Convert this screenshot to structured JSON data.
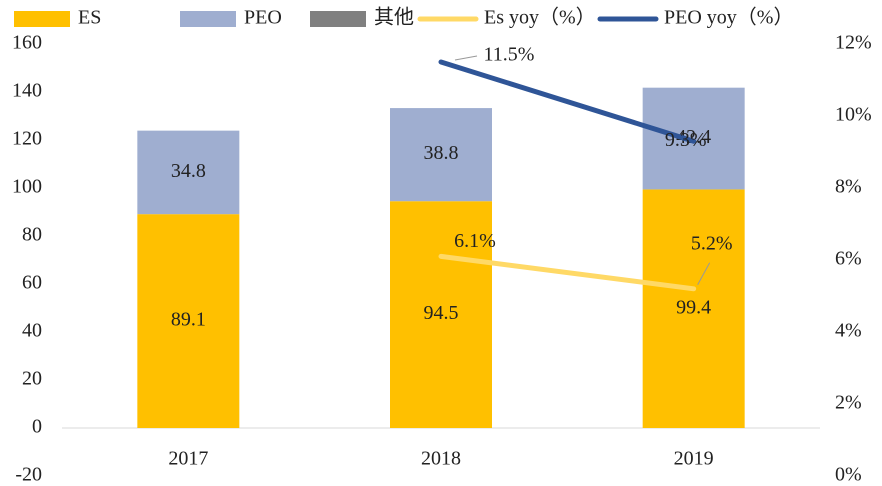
{
  "chart_data": {
    "type": "bar",
    "stacked": true,
    "categories": [
      "2017",
      "2018",
      "2019"
    ],
    "series": [
      {
        "name": "ES",
        "type": "bar",
        "color": "#FFC000",
        "values": [
          89.1,
          94.5,
          99.4
        ]
      },
      {
        "name": "PEO",
        "type": "bar",
        "color": "#9FAED0",
        "values": [
          34.8,
          38.8,
          42.4
        ]
      },
      {
        "name": "其他",
        "type": "bar",
        "color": "#808080",
        "values": [
          0,
          0,
          0
        ]
      },
      {
        "name": "Es yoy（%）",
        "type": "line",
        "axis": "y2",
        "color": "#FFD966",
        "values": [
          null,
          6.1,
          5.2
        ],
        "value_labels": [
          null,
          "6.1%",
          "5.2%"
        ]
      },
      {
        "name": "PEO yoy（%）",
        "type": "line",
        "axis": "y2",
        "color": "#2F5597",
        "values": [
          null,
          11.5,
          9.3
        ],
        "value_labels": [
          null,
          "11.5%",
          "9.3%"
        ]
      }
    ],
    "ylim": [
      -20,
      160
    ],
    "yticks": [
      -20,
      0,
      20,
      40,
      60,
      80,
      100,
      120,
      140,
      160
    ],
    "y2lim": [
      0,
      12
    ],
    "y2ticks": [
      {
        "value": 0,
        "label": "0%"
      },
      {
        "value": 2,
        "label": "2%"
      },
      {
        "value": 4,
        "label": "4%"
      },
      {
        "value": 6,
        "label": "6%"
      },
      {
        "value": 8,
        "label": "8%"
      },
      {
        "value": 10,
        "label": "10%"
      },
      {
        "value": 12,
        "label": "12%"
      }
    ],
    "grid": false,
    "legend": "top"
  }
}
